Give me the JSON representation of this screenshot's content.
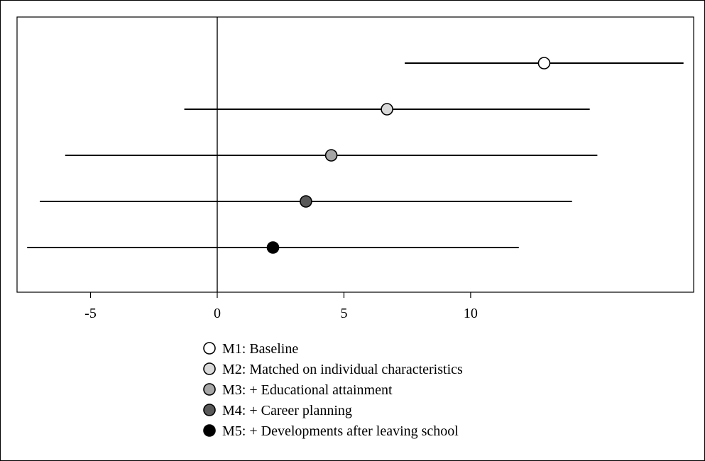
{
  "chart_data": {
    "type": "scatter",
    "subtype": "coefficient-plot",
    "title": "",
    "xlabel": "",
    "ylabel": "",
    "xlim": [
      -7.9,
      18.8
    ],
    "x_ticks": [
      -5,
      0,
      5,
      10
    ],
    "reference_line_x": 0,
    "grid": false,
    "legend_position": "bottom",
    "series": [
      {
        "name": "M1: Baseline",
        "estimate": 12.9,
        "ci_low": 7.4,
        "ci_high": 18.4,
        "color": "#ffffff"
      },
      {
        "name": "M2: Matched on individual characteristics",
        "estimate": 6.7,
        "ci_low": -1.3,
        "ci_high": 14.7,
        "color": "#d9d9d9"
      },
      {
        "name": "M3: + Educational attainment",
        "estimate": 4.5,
        "ci_low": -6.0,
        "ci_high": 15.0,
        "color": "#a6a6a6"
      },
      {
        "name": "M4: + Career planning",
        "estimate": 3.5,
        "ci_low": -7.0,
        "ci_high": 14.0,
        "color": "#595959"
      },
      {
        "name": "M5: + Developments after leaving school",
        "estimate": 2.2,
        "ci_low": -7.5,
        "ci_high": 11.9,
        "color": "#000000"
      }
    ]
  }
}
